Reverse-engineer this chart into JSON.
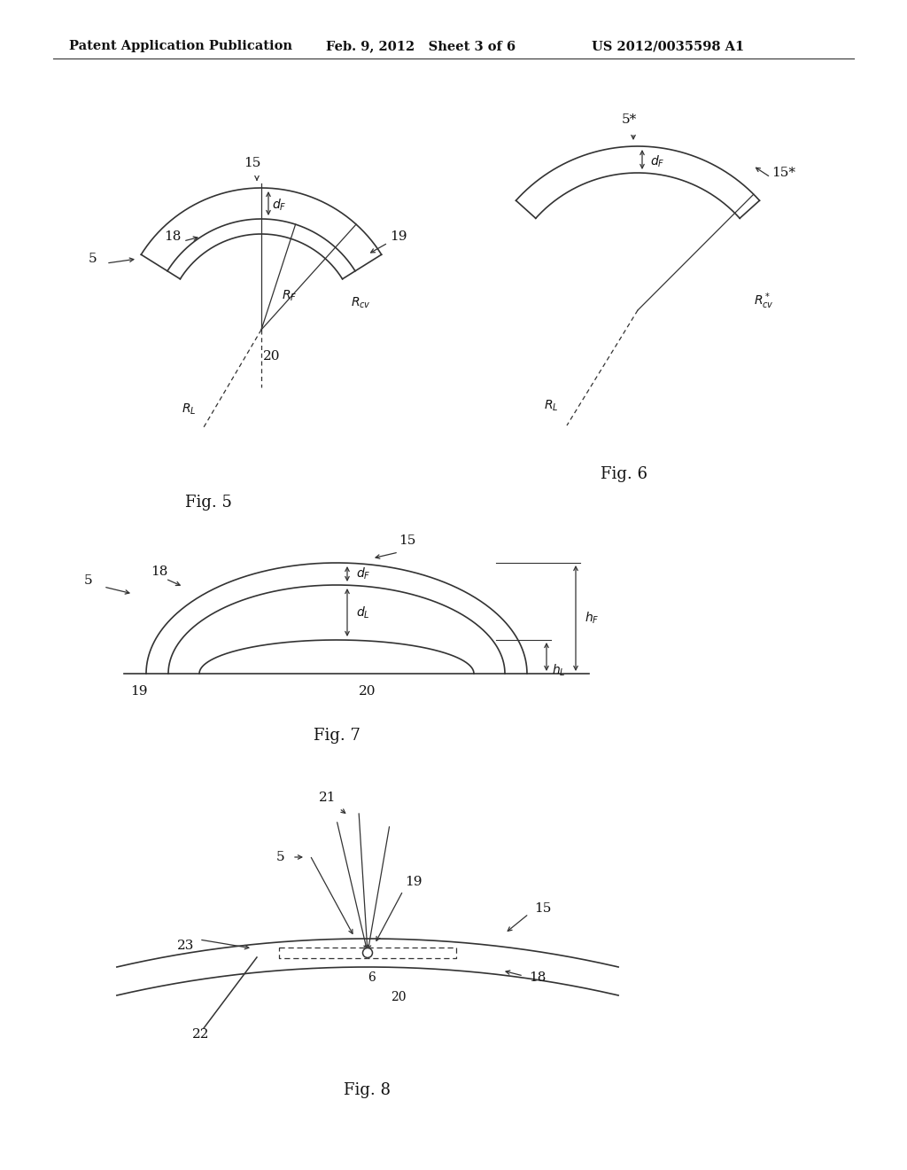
{
  "background_color": "#ffffff",
  "header_left": "Patent Application Publication",
  "header_mid": "Feb. 9, 2012   Sheet 3 of 6",
  "header_right": "US 2012/0035598 A1",
  "line_color": "#333333",
  "text_color": "#111111"
}
